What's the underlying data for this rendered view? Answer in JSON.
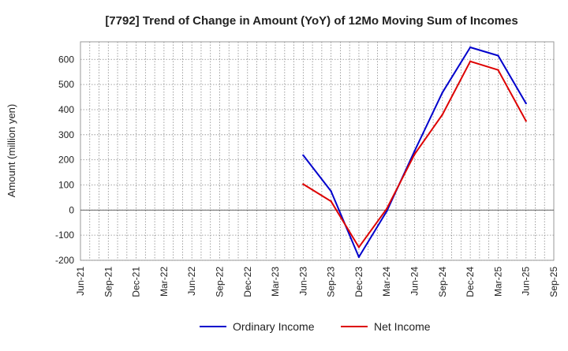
{
  "chart_data": {
    "type": "line",
    "title": "[7792]  Trend of Change in Amount (YoY) of 12Mo Moving Sum of Incomes",
    "xlabel": "",
    "ylabel": "Amount (million yen)",
    "ylim": [
      -200,
      670
    ],
    "yticks": [
      -200,
      -100,
      0,
      100,
      200,
      300,
      400,
      500,
      600
    ],
    "grid": true,
    "legend_position": "bottom",
    "categories": [
      "Jun-21",
      "Sep-21",
      "Dec-21",
      "Mar-22",
      "Jun-22",
      "Sep-22",
      "Dec-22",
      "Mar-23",
      "Jun-23",
      "Sep-23",
      "Dec-23",
      "Mar-24",
      "Jun-24",
      "Sep-24",
      "Dec-24",
      "Mar-25",
      "Jun-25",
      "Sep-25"
    ],
    "series": [
      {
        "name": "Ordinary Income",
        "color": "#0000cc",
        "values": [
          null,
          null,
          null,
          null,
          null,
          null,
          null,
          null,
          218,
          75,
          -187,
          -5,
          235,
          468,
          648,
          615,
          425,
          null
        ]
      },
      {
        "name": "Net Income",
        "color": "#dd0000",
        "values": [
          null,
          null,
          null,
          null,
          null,
          null,
          null,
          null,
          103,
          35,
          -148,
          5,
          222,
          380,
          592,
          558,
          355,
          null
        ]
      }
    ]
  }
}
